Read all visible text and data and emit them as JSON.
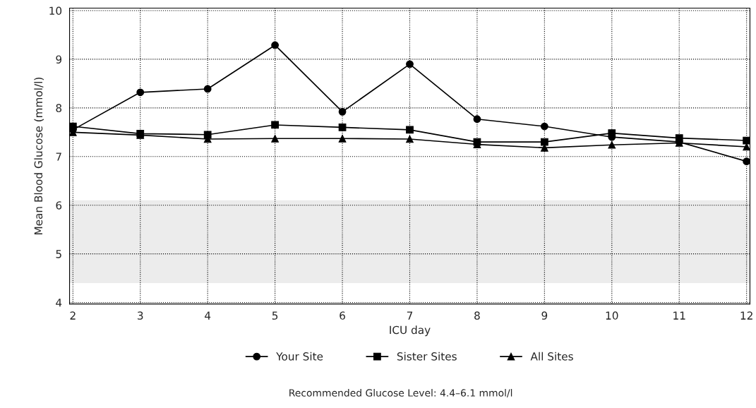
{
  "chart_data": {
    "type": "line",
    "xlabel": "ICU day",
    "ylabel": "Mean Blood Glucose (mmol/l)",
    "x": [
      2,
      3,
      4,
      5,
      6,
      7,
      8,
      9,
      10,
      11,
      12
    ],
    "series": [
      {
        "name": "Your Site",
        "color": "#000000",
        "marker": "circle",
        "values": [
          7.55,
          8.32,
          8.39,
          9.29,
          7.92,
          8.9,
          7.77,
          7.62,
          7.4,
          7.3,
          6.9
        ]
      },
      {
        "name": "Sister Sites",
        "color": "#000000",
        "marker": "square",
        "values": [
          7.62,
          7.47,
          7.45,
          7.65,
          7.6,
          7.55,
          7.3,
          7.3,
          7.48,
          7.38,
          7.33
        ]
      },
      {
        "name": "All Sites",
        "color": "#000000",
        "marker": "triangle",
        "values": [
          7.5,
          7.44,
          7.36,
          7.37,
          7.37,
          7.36,
          7.25,
          7.18,
          7.24,
          7.28,
          7.2
        ]
      }
    ],
    "xlim": [
      1.95,
      12.05
    ],
    "xticks": [
      2,
      3,
      4,
      5,
      6,
      7,
      8,
      9,
      10,
      11,
      12
    ],
    "ylim": [
      3.97,
      10.05
    ],
    "yticks": [
      4,
      5,
      6,
      7,
      8,
      9,
      10
    ],
    "bands": [
      {
        "axis": "y",
        "from": 4.4,
        "to": 6.1,
        "color": "#ececec"
      }
    ],
    "grid": true,
    "legend": "bottom",
    "line_style": "solid",
    "annotations": [
      "Recommended Glucose Level: 4.4–6.1 mmol/l"
    ]
  }
}
